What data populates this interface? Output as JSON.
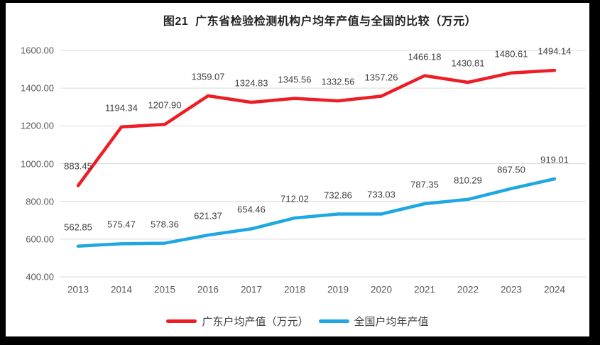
{
  "frame": {
    "border_color": "#000000",
    "background": "#ffffff"
  },
  "chart_data": {
    "type": "line",
    "title": "图21  广东省检验检测机构户均年产值与全国的比较（万元）",
    "categories": [
      "2013",
      "2014",
      "2015",
      "2016",
      "2017",
      "2018",
      "2019",
      "2020",
      "2021",
      "2022",
      "2023",
      "2024"
    ],
    "series": [
      {
        "name": "广东户均产值（万元）",
        "color": "#ee1c25",
        "values": [
          883.45,
          1194.34,
          1207.9,
          1359.07,
          1324.83,
          1345.56,
          1332.56,
          1357.26,
          1466.18,
          1430.81,
          1480.61,
          1494.14
        ]
      },
      {
        "name": "全国户均年产值",
        "color": "#1ea7e1",
        "values": [
          562.85,
          575.47,
          578.36,
          621.37,
          654.46,
          712.02,
          732.86,
          733.03,
          787.35,
          810.29,
          867.5,
          919.01
        ]
      }
    ],
    "y_axis": {
      "min": 400,
      "max": 1600,
      "step": 200,
      "tick_labels": [
        "1600.00",
        "1400.00",
        "1200.00",
        "1000.00",
        "800.00",
        "600.00",
        "400.00"
      ]
    },
    "grid": true,
    "gridline_color": "#d9d9d9",
    "axis_text_color": "#595959",
    "data_label_color": "#3f3f3f",
    "legend_position": "bottom",
    "data_labels_shown": true
  }
}
